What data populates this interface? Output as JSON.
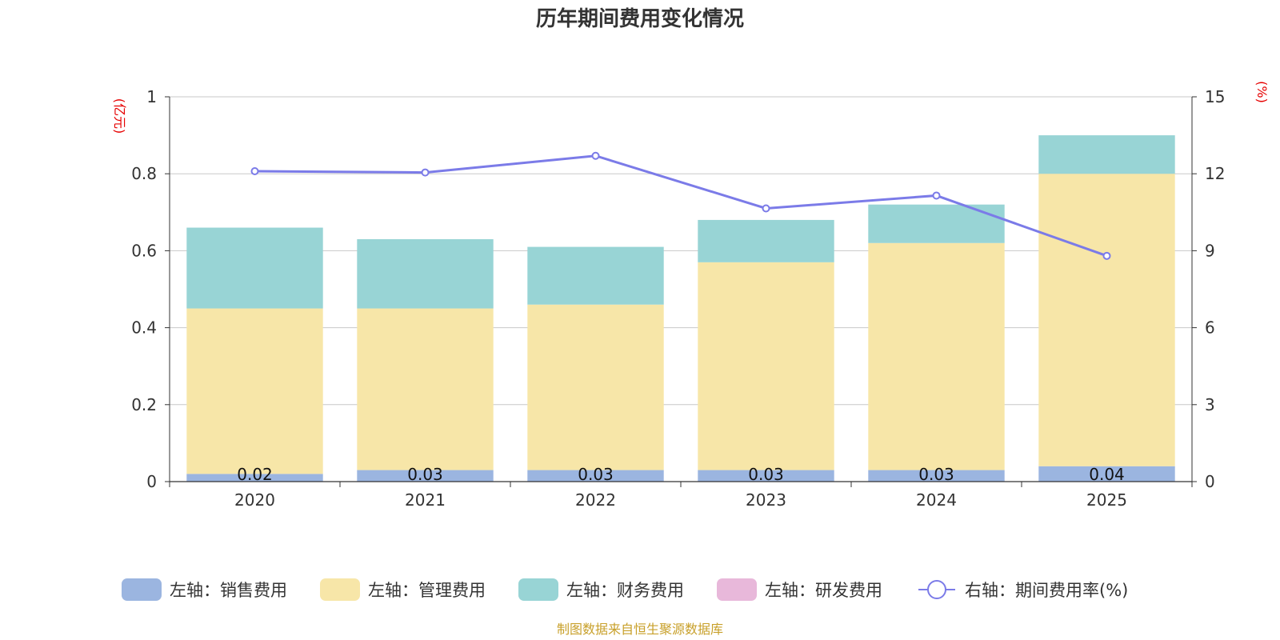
{
  "chart_data": {
    "type": "bar",
    "title": "历年期间费用变化情况",
    "categories": [
      "2020",
      "2021",
      "2022",
      "2023",
      "2024",
      "2025"
    ],
    "left_axis": {
      "unit": "(亿元)",
      "ylim": [
        0,
        1
      ],
      "ticks": [
        "0",
        "0.2",
        "0.4",
        "0.6",
        "0.8",
        "1"
      ],
      "tick_values": [
        0,
        0.2,
        0.4,
        0.6,
        0.8,
        1
      ]
    },
    "right_axis": {
      "unit": "(%)",
      "ylim": [
        0,
        15
      ],
      "ticks": [
        "0",
        "3",
        "6",
        "9",
        "12",
        "15"
      ],
      "tick_values": [
        0,
        3,
        6,
        9,
        12,
        15
      ]
    },
    "series": [
      {
        "name": "左轴：销售费用",
        "kind": "bar",
        "axis": "left",
        "color": "#9bb5e0",
        "values": [
          0.02,
          0.03,
          0.03,
          0.03,
          0.03,
          0.04
        ],
        "labels": [
          "0.02",
          "0.03",
          "0.03",
          "0.03",
          "0.03",
          "0.04"
        ]
      },
      {
        "name": "左轴：管理费用",
        "kind": "bar",
        "axis": "left",
        "color": "#f7e6a8",
        "values": [
          0.43,
          0.42,
          0.43,
          0.54,
          0.59,
          0.76
        ]
      },
      {
        "name": "左轴：财务费用",
        "kind": "bar",
        "axis": "left",
        "color": "#98d4d5",
        "values": [
          0.21,
          0.18,
          0.15,
          0.11,
          0.1,
          0.1
        ]
      },
      {
        "name": "左轴：研发费用",
        "kind": "bar",
        "axis": "left",
        "color": "#e8b8da",
        "values": [
          0,
          0,
          0,
          0,
          0,
          0
        ]
      },
      {
        "name": "右轴：期间费用率(%)",
        "kind": "line",
        "axis": "right",
        "color": "#7b7be8",
        "values": [
          12.1,
          12.05,
          12.7,
          10.65,
          11.15,
          8.8
        ]
      }
    ],
    "source": "制图数据来自恒生聚源数据库"
  }
}
